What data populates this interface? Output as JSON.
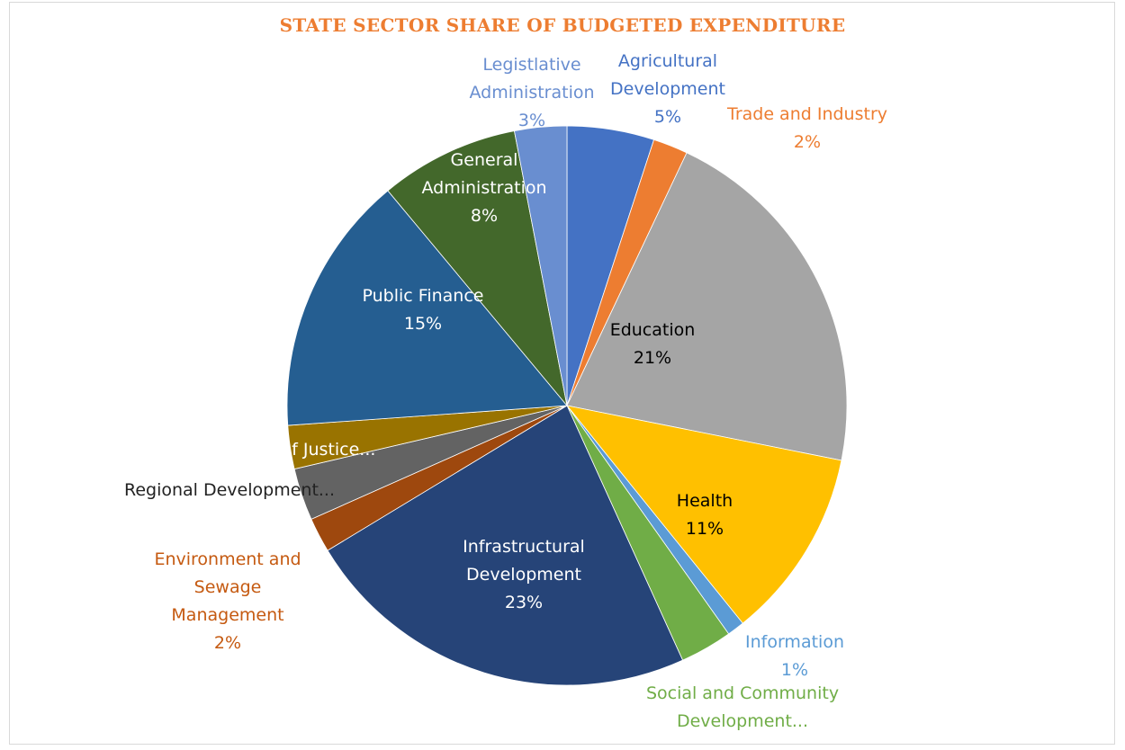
{
  "chart_data": {
    "type": "pie",
    "title": "STATE  SECTOR SHARE OF BUDGETED EXPENDITURE",
    "slices": [
      {
        "label": "Agricultural Development",
        "value": 5,
        "display": "5%",
        "color": "#4472c4"
      },
      {
        "label": "Trade and Industry",
        "value": 2,
        "display": "2%",
        "color": "#ed7d31"
      },
      {
        "label": "Education",
        "value": 21,
        "display": "21%",
        "color": "#a5a5a5"
      },
      {
        "label": "Health",
        "value": 11,
        "display": "11%",
        "color": "#ffc000"
      },
      {
        "label": "Information",
        "value": 1,
        "display": "1%",
        "color": "#5b9bd5"
      },
      {
        "label": "Social and Community Development...",
        "value": 3,
        "display": "",
        "color": "#70ad47"
      },
      {
        "label": "Infrastructural Development",
        "value": 23,
        "display": "23%",
        "color": "#264478"
      },
      {
        "label": "Environment and Sewage Management",
        "value": 2,
        "display": "2%",
        "color": "#9e480e"
      },
      {
        "label": "Regional Development...",
        "value": 3,
        "display": "",
        "color": "#636363"
      },
      {
        "label": "of Justice...",
        "value": 2.5,
        "display": "",
        "color": "#997300"
      },
      {
        "label": "Public Finance",
        "value": 15,
        "display": "15%",
        "color": "#255e91"
      },
      {
        "label": "General Administration",
        "value": 8,
        "display": "8%",
        "color": "#43682b"
      },
      {
        "label": "Legistlative Administration",
        "value": 3,
        "display": "3%",
        "color": "#698ed0"
      }
    ],
    "labels": [
      {
        "lines": [
          "Agricultural",
          "Development",
          "5%"
        ],
        "color": "#4472c4"
      },
      {
        "lines": [
          "Trade and Industry",
          "2%"
        ],
        "color": "#ed7d31"
      },
      {
        "lines": [
          "Education",
          "21%"
        ],
        "color": "#000000"
      },
      {
        "lines": [
          "Health",
          "11%"
        ],
        "color": "#000000"
      },
      {
        "lines": [
          "Information",
          "1%"
        ],
        "color": "#5b9bd5"
      },
      {
        "lines": [
          "Social and Community",
          "Development..."
        ],
        "color": "#70ad47"
      },
      {
        "lines": [
          "Infrastructural",
          "Development",
          "23%"
        ],
        "color": "#ffffff"
      },
      {
        "lines": [
          "Environment and",
          "Sewage",
          "Management",
          "2%"
        ],
        "color": "#c55a11"
      },
      {
        "lines": [
          "Regional Development..."
        ],
        "color": "#222222"
      },
      {
        "lines": [
          "of Justice..."
        ],
        "color": "#ffffff"
      },
      {
        "lines": [
          "Public Finance",
          "15%"
        ],
        "color": "#ffffff"
      },
      {
        "lines": [
          "General",
          "Administration",
          "8%"
        ],
        "color": "#ffffff"
      },
      {
        "lines": [
          "Legistlative",
          "Administration",
          "3%"
        ],
        "color": "#698ed0"
      }
    ],
    "start_angle_deg": 0,
    "direction": "clockwise",
    "legend": "none"
  }
}
